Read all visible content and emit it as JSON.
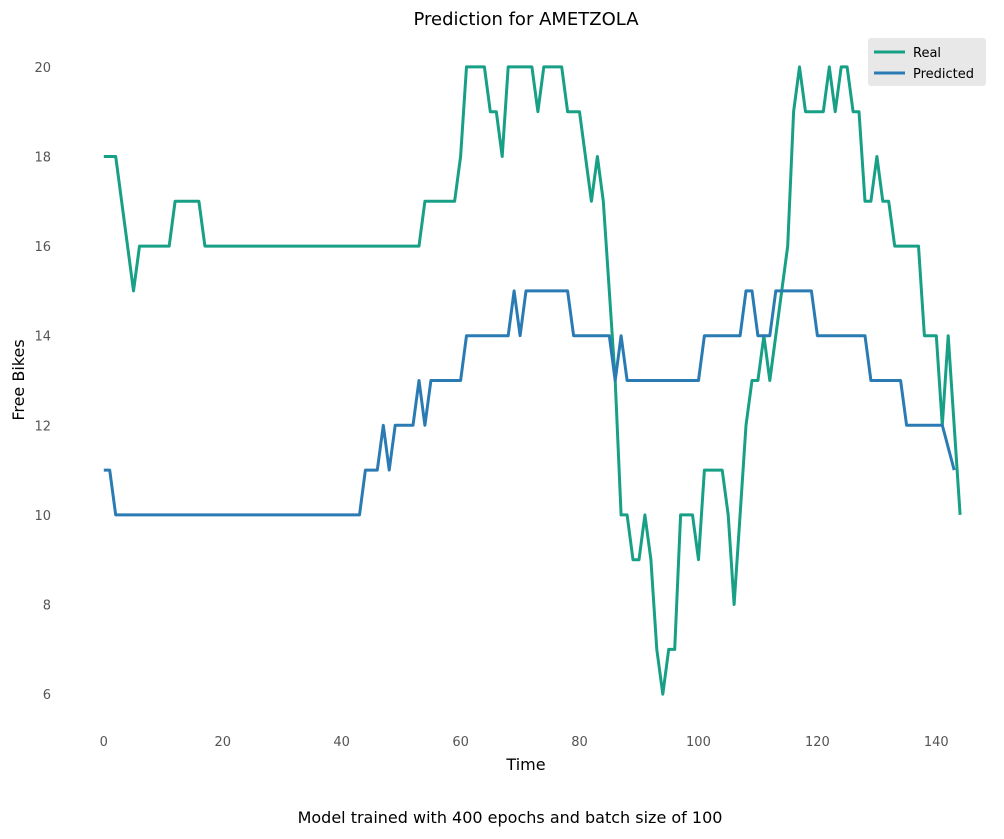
{
  "chart_data": {
    "type": "line",
    "title": "Prediction for AMETZOLA",
    "xlabel": "Time",
    "ylabel": "Free Bikes",
    "xlim": [
      -4,
      146
    ],
    "ylim": [
      5.2,
      20.6
    ],
    "xticks": [
      0,
      20,
      40,
      60,
      80,
      100,
      120,
      140
    ],
    "yticks": [
      6,
      8,
      10,
      12,
      14,
      16,
      18,
      20
    ],
    "grid": false,
    "legend_position": "top-right",
    "caption": "Model trained with 400 epochs and batch size of 100",
    "series": [
      {
        "name": "Real",
        "color": "#17a086",
        "points": [
          [
            0,
            18
          ],
          [
            2,
            18
          ],
          [
            5,
            15
          ],
          [
            6,
            16
          ],
          [
            11,
            16
          ],
          [
            12,
            17
          ],
          [
            16,
            17
          ],
          [
            17,
            16
          ],
          [
            53,
            16
          ],
          [
            54,
            17
          ],
          [
            59,
            17
          ],
          [
            60,
            18
          ],
          [
            61,
            20
          ],
          [
            64,
            20
          ],
          [
            65,
            19
          ],
          [
            66,
            19
          ],
          [
            67,
            18
          ],
          [
            68,
            20
          ],
          [
            72,
            20
          ],
          [
            73,
            19
          ],
          [
            74,
            20
          ],
          [
            77,
            20
          ],
          [
            78,
            19
          ],
          [
            80,
            19
          ],
          [
            82,
            17
          ],
          [
            83,
            18
          ],
          [
            84,
            17
          ],
          [
            85,
            15
          ],
          [
            86,
            13
          ],
          [
            87,
            10
          ],
          [
            88,
            10
          ],
          [
            89,
            9
          ],
          [
            90,
            9
          ],
          [
            91,
            10
          ],
          [
            92,
            9
          ],
          [
            93,
            7
          ],
          [
            94,
            6
          ],
          [
            95,
            7
          ],
          [
            96,
            7
          ],
          [
            97,
            10
          ],
          [
            99,
            10
          ],
          [
            100,
            9
          ],
          [
            101,
            11
          ],
          [
            104,
            11
          ],
          [
            105,
            10
          ],
          [
            106,
            8
          ],
          [
            107,
            10
          ],
          [
            108,
            12
          ],
          [
            109,
            13
          ],
          [
            110,
            13
          ],
          [
            111,
            14
          ],
          [
            112,
            13
          ],
          [
            115,
            16
          ],
          [
            116,
            19
          ],
          [
            117,
            20
          ],
          [
            118,
            19
          ],
          [
            121,
            19
          ],
          [
            122,
            20
          ],
          [
            123,
            19
          ],
          [
            124,
            20
          ],
          [
            125,
            20
          ],
          [
            126,
            19
          ],
          [
            127,
            19
          ],
          [
            128,
            17
          ],
          [
            129,
            17
          ],
          [
            130,
            18
          ],
          [
            131,
            17
          ],
          [
            132,
            17
          ],
          [
            133,
            16
          ],
          [
            137,
            16
          ],
          [
            138,
            14
          ],
          [
            140,
            14
          ],
          [
            141,
            12
          ],
          [
            142,
            14
          ],
          [
            144,
            10
          ]
        ]
      },
      {
        "name": "Predicted",
        "color": "#2a7bb4",
        "points": [
          [
            0,
            11
          ],
          [
            1,
            11
          ],
          [
            2,
            10
          ],
          [
            43,
            10
          ],
          [
            44,
            11
          ],
          [
            46,
            11
          ],
          [
            47,
            12
          ],
          [
            48,
            11
          ],
          [
            49,
            12
          ],
          [
            52,
            12
          ],
          [
            53,
            13
          ],
          [
            54,
            12
          ],
          [
            55,
            13
          ],
          [
            60,
            13
          ],
          [
            61,
            14
          ],
          [
            68,
            14
          ],
          [
            69,
            15
          ],
          [
            70,
            14
          ],
          [
            71,
            15
          ],
          [
            78,
            15
          ],
          [
            79,
            14
          ],
          [
            85,
            14
          ],
          [
            86,
            13
          ],
          [
            87,
            14
          ],
          [
            88,
            13
          ],
          [
            100,
            13
          ],
          [
            101,
            14
          ],
          [
            107,
            14
          ],
          [
            108,
            15
          ],
          [
            109,
            15
          ],
          [
            110,
            14
          ],
          [
            112,
            14
          ],
          [
            113,
            15
          ],
          [
            119,
            15
          ],
          [
            120,
            14
          ],
          [
            128,
            14
          ],
          [
            129,
            13
          ],
          [
            134,
            13
          ],
          [
            135,
            12
          ],
          [
            141,
            12
          ],
          [
            143,
            11
          ]
        ]
      }
    ]
  }
}
